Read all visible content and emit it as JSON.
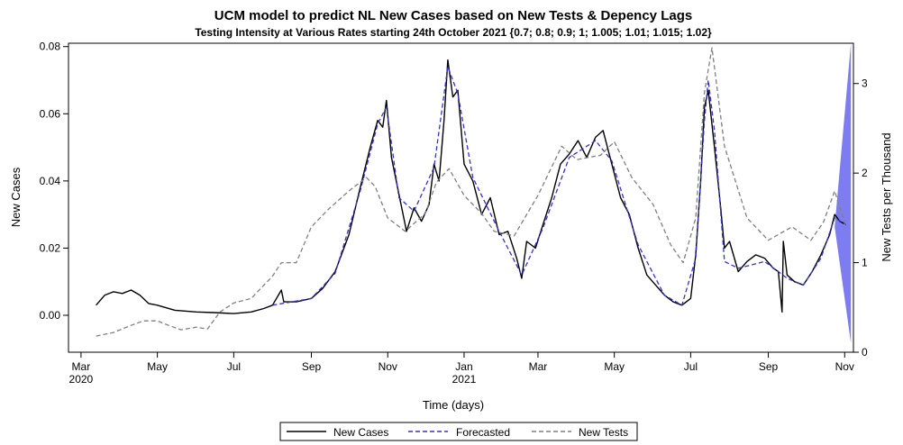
{
  "chart_data": {
    "type": "line",
    "title": "UCM model to predict NL New Cases based on New Tests & Depency Lags",
    "subtitle": "Testing Intensity at Various Rates starting 24th October 2021 {0.7; 0.8; 0.9; 1; 1.005; 1.01; 1.015; 1.02}",
    "xlabel": "Time (days)",
    "ylabel": "New Cases",
    "y2label": "New Tests per Thousand",
    "x_tick_labels": [
      "Mar",
      "May",
      "Jul",
      "Sep",
      "Nov",
      "Jan",
      "Mar",
      "May",
      "Jul",
      "Sep",
      "Nov"
    ],
    "x_tick_dates": [
      "2020-03-01",
      "2020-05-01",
      "2020-07-01",
      "2020-09-01",
      "2020-11-01",
      "2021-01-01",
      "2021-03-01",
      "2021-05-01",
      "2021-07-01",
      "2021-09-01",
      "2021-11-01"
    ],
    "x_year_labels": [
      {
        "label": "2020",
        "date": "2020-03-01"
      },
      {
        "label": "2021",
        "date": "2021-01-01"
      }
    ],
    "xlim": [
      "2020-02-20",
      "2021-11-08"
    ],
    "ylim": [
      -0.011,
      0.081
    ],
    "y_ticks": [
      "0.00",
      "0.02",
      "0.04",
      "0.06",
      "0.08"
    ],
    "y2lim": [
      0.0,
      3.45
    ],
    "y2_ticks": [
      "0",
      "1",
      "2",
      "3"
    ],
    "legend_position": "bottom",
    "grid": false,
    "series": [
      {
        "name": "New Cases",
        "axis": "left",
        "color": "#000000",
        "style": "solid",
        "points": [
          [
            "2020-03-13",
            0.003
          ],
          [
            "2020-03-20",
            0.006
          ],
          [
            "2020-03-27",
            0.007
          ],
          [
            "2020-04-03",
            0.0065
          ],
          [
            "2020-04-10",
            0.0075
          ],
          [
            "2020-04-17",
            0.006
          ],
          [
            "2020-04-24",
            0.0035
          ],
          [
            "2020-05-01",
            0.003
          ],
          [
            "2020-05-15",
            0.0015
          ],
          [
            "2020-06-01",
            0.001
          ],
          [
            "2020-06-15",
            0.0008
          ],
          [
            "2020-07-01",
            0.0005
          ],
          [
            "2020-07-15",
            0.001
          ],
          [
            "2020-07-25",
            0.002
          ],
          [
            "2020-08-01",
            0.003
          ],
          [
            "2020-08-08",
            0.0075
          ],
          [
            "2020-08-10",
            0.004
          ],
          [
            "2020-08-20",
            0.004
          ],
          [
            "2020-09-01",
            0.005
          ],
          [
            "2020-09-10",
            0.008
          ],
          [
            "2020-09-20",
            0.013
          ],
          [
            "2020-10-01",
            0.024
          ],
          [
            "2020-10-10",
            0.038
          ],
          [
            "2020-10-18",
            0.05
          ],
          [
            "2020-10-24",
            0.058
          ],
          [
            "2020-10-28",
            0.056
          ],
          [
            "2020-10-31",
            0.064
          ],
          [
            "2020-11-04",
            0.047
          ],
          [
            "2020-11-10",
            0.036
          ],
          [
            "2020-11-16",
            0.025
          ],
          [
            "2020-11-22",
            0.032
          ],
          [
            "2020-11-28",
            0.028
          ],
          [
            "2020-12-04",
            0.033
          ],
          [
            "2020-12-08",
            0.045
          ],
          [
            "2020-12-12",
            0.04
          ],
          [
            "2020-12-16",
            0.058
          ],
          [
            "2020-12-19",
            0.076
          ],
          [
            "2020-12-23",
            0.065
          ],
          [
            "2020-12-27",
            0.067
          ],
          [
            "2021-01-01",
            0.045
          ],
          [
            "2021-01-08",
            0.04
          ],
          [
            "2021-01-15",
            0.03
          ],
          [
            "2021-01-22",
            0.035
          ],
          [
            "2021-01-29",
            0.024
          ],
          [
            "2021-02-05",
            0.025
          ],
          [
            "2021-02-12",
            0.017
          ],
          [
            "2021-02-16",
            0.011
          ],
          [
            "2021-02-20",
            0.022
          ],
          [
            "2021-02-27",
            0.02
          ],
          [
            "2021-03-05",
            0.027
          ],
          [
            "2021-03-12",
            0.035
          ],
          [
            "2021-03-19",
            0.045
          ],
          [
            "2021-03-26",
            0.048
          ],
          [
            "2021-04-02",
            0.052
          ],
          [
            "2021-04-09",
            0.047
          ],
          [
            "2021-04-16",
            0.053
          ],
          [
            "2021-04-22",
            0.055
          ],
          [
            "2021-04-29",
            0.045
          ],
          [
            "2021-05-06",
            0.035
          ],
          [
            "2021-05-13",
            0.03
          ],
          [
            "2021-05-20",
            0.02
          ],
          [
            "2021-05-27",
            0.012
          ],
          [
            "2021-06-03",
            0.009
          ],
          [
            "2021-06-10",
            0.006
          ],
          [
            "2021-06-17",
            0.004
          ],
          [
            "2021-06-24",
            0.003
          ],
          [
            "2021-07-01",
            0.005
          ],
          [
            "2021-07-05",
            0.018
          ],
          [
            "2021-07-09",
            0.04
          ],
          [
            "2021-07-12",
            0.062
          ],
          [
            "2021-07-15",
            0.067
          ],
          [
            "2021-07-20",
            0.05
          ],
          [
            "2021-07-25",
            0.032
          ],
          [
            "2021-07-28",
            0.02
          ],
          [
            "2021-08-01",
            0.022
          ],
          [
            "2021-08-08",
            0.013
          ],
          [
            "2021-08-15",
            0.016
          ],
          [
            "2021-08-22",
            0.018
          ],
          [
            "2021-08-29",
            0.017
          ],
          [
            "2021-09-05",
            0.014
          ],
          [
            "2021-09-09",
            0.013
          ],
          [
            "2021-09-12",
            0.001
          ],
          [
            "2021-09-13",
            0.022
          ],
          [
            "2021-09-16",
            0.012
          ],
          [
            "2021-09-22",
            0.01
          ],
          [
            "2021-09-29",
            0.009
          ],
          [
            "2021-10-06",
            0.013
          ],
          [
            "2021-10-13",
            0.018
          ],
          [
            "2021-10-20",
            0.024
          ],
          [
            "2021-10-24",
            0.03
          ],
          [
            "2021-10-28",
            0.028
          ],
          [
            "2021-11-02",
            0.027
          ]
        ]
      },
      {
        "name": "Forecasted",
        "axis": "left",
        "color": "#3333cc",
        "style": "dashed",
        "points": [
          [
            "2020-08-01",
            0.003
          ],
          [
            "2020-09-01",
            0.005
          ],
          [
            "2020-09-20",
            0.0125
          ],
          [
            "2020-10-10",
            0.037
          ],
          [
            "2020-10-24",
            0.057
          ],
          [
            "2020-10-31",
            0.062
          ],
          [
            "2020-11-10",
            0.035
          ],
          [
            "2020-11-22",
            0.031
          ],
          [
            "2020-12-08",
            0.044
          ],
          [
            "2020-12-19",
            0.074
          ],
          [
            "2020-12-27",
            0.066
          ],
          [
            "2021-01-08",
            0.041
          ],
          [
            "2021-01-29",
            0.025
          ],
          [
            "2021-02-16",
            0.012
          ],
          [
            "2021-03-05",
            0.026
          ],
          [
            "2021-03-26",
            0.047
          ],
          [
            "2021-04-16",
            0.052
          ],
          [
            "2021-04-29",
            0.046
          ],
          [
            "2021-05-20",
            0.021
          ],
          [
            "2021-06-10",
            0.006
          ],
          [
            "2021-06-24",
            0.003
          ],
          [
            "2021-07-05",
            0.017
          ],
          [
            "2021-07-12",
            0.058
          ],
          [
            "2021-07-15",
            0.07
          ],
          [
            "2021-07-20",
            0.055
          ],
          [
            "2021-07-28",
            0.016
          ],
          [
            "2021-08-08",
            0.014
          ],
          [
            "2021-08-29",
            0.016
          ],
          [
            "2021-09-09",
            0.013
          ],
          [
            "2021-09-16",
            0.011
          ],
          [
            "2021-09-29",
            0.009
          ],
          [
            "2021-10-13",
            0.017
          ],
          [
            "2021-10-24",
            0.029
          ],
          [
            "2021-11-02",
            0.027
          ]
        ]
      },
      {
        "name": "New Tests",
        "axis": "right",
        "color": "#808080",
        "style": "dashed",
        "points": [
          [
            "2020-03-13",
            0.18
          ],
          [
            "2020-03-27",
            0.22
          ],
          [
            "2020-04-10",
            0.3
          ],
          [
            "2020-04-20",
            0.35
          ],
          [
            "2020-05-01",
            0.35
          ],
          [
            "2020-05-10",
            0.3
          ],
          [
            "2020-05-20",
            0.25
          ],
          [
            "2020-06-01",
            0.28
          ],
          [
            "2020-06-10",
            0.26
          ],
          [
            "2020-06-20",
            0.45
          ],
          [
            "2020-07-01",
            0.55
          ],
          [
            "2020-07-15",
            0.6
          ],
          [
            "2020-08-01",
            0.85
          ],
          [
            "2020-08-08",
            1.0
          ],
          [
            "2020-08-20",
            1.0
          ],
          [
            "2020-09-01",
            1.4
          ],
          [
            "2020-09-15",
            1.6
          ],
          [
            "2020-10-01",
            1.8
          ],
          [
            "2020-10-15",
            1.95
          ],
          [
            "2020-10-22",
            1.85
          ],
          [
            "2020-11-01",
            1.5
          ],
          [
            "2020-11-15",
            1.35
          ],
          [
            "2020-12-01",
            1.55
          ],
          [
            "2020-12-10",
            1.9
          ],
          [
            "2020-12-20",
            2.05
          ],
          [
            "2021-01-01",
            1.75
          ],
          [
            "2021-01-15",
            1.55
          ],
          [
            "2021-01-25",
            1.35
          ],
          [
            "2021-02-10",
            1.3
          ],
          [
            "2021-03-01",
            1.75
          ],
          [
            "2021-03-20",
            2.3
          ],
          [
            "2021-04-01",
            2.15
          ],
          [
            "2021-04-20",
            2.2
          ],
          [
            "2021-05-01",
            2.35
          ],
          [
            "2021-05-15",
            1.95
          ],
          [
            "2021-06-01",
            1.65
          ],
          [
            "2021-06-15",
            1.2
          ],
          [
            "2021-06-25",
            1.0
          ],
          [
            "2021-07-05",
            1.5
          ],
          [
            "2021-07-12",
            2.9
          ],
          [
            "2021-07-18",
            3.4
          ],
          [
            "2021-07-28",
            2.3
          ],
          [
            "2021-08-15",
            1.5
          ],
          [
            "2021-09-01",
            1.25
          ],
          [
            "2021-09-20",
            1.4
          ],
          [
            "2021-10-05",
            1.25
          ],
          [
            "2021-10-15",
            1.45
          ],
          [
            "2021-10-24",
            1.8
          ],
          [
            "2021-11-02",
            1.4
          ]
        ]
      }
    ],
    "forecast_band": {
      "color": "#6666ee",
      "start": "2021-10-24",
      "end": "2021-11-06",
      "upper_end": 3.45,
      "lower_end": 0.1,
      "axis": "right"
    }
  },
  "legend": {
    "items": [
      {
        "label": "New Cases",
        "style": "solid",
        "color": "#000000"
      },
      {
        "label": "Forecasted",
        "style": "dashed",
        "color": "#3333cc"
      },
      {
        "label": "New Tests",
        "style": "dashed",
        "color": "#808080"
      }
    ]
  }
}
